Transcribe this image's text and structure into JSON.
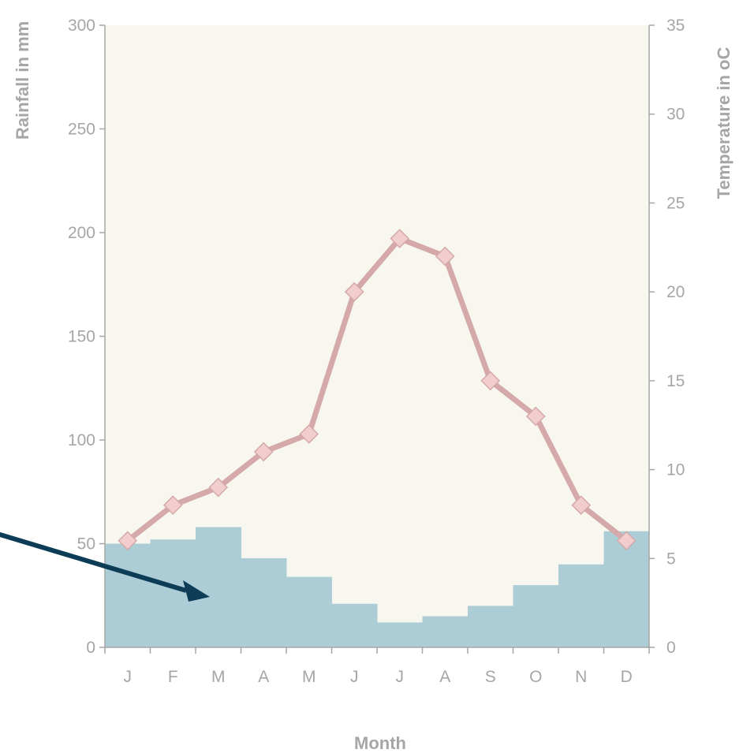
{
  "chart_data": {
    "type": "bar+line",
    "categories": [
      "J",
      "F",
      "M",
      "A",
      "M",
      "J",
      "J",
      "A",
      "S",
      "O",
      "N",
      "D"
    ],
    "series": [
      {
        "type": "bar",
        "axis": "left",
        "values": [
          50,
          52,
          58,
          43,
          34,
          21,
          12,
          15,
          20,
          30,
          40,
          56
        ]
      },
      {
        "type": "line",
        "axis": "right",
        "values": [
          6,
          8,
          9,
          11,
          12,
          20,
          23,
          22,
          15,
          13,
          8,
          6
        ]
      }
    ],
    "xlabel": "Month",
    "ylabel_left": "Rainfall in mm",
    "ylabel_right": "Temperature in oC",
    "ylim_left": [
      0,
      300
    ],
    "ylim_right": [
      0,
      35
    ],
    "yticks_left": [
      0,
      50,
      100,
      150,
      200,
      250,
      300
    ],
    "yticks_right": [
      0,
      5,
      10,
      15,
      20,
      25,
      30,
      35
    ],
    "grid": false,
    "colors": {
      "plot_background": "#f7f7f0",
      "bars": "#adcdd6",
      "line": "#d5a9a9",
      "markers": "#f1cdcd",
      "axis": "#a6a6a6",
      "arrow": "#0d3c57"
    },
    "annotation": {
      "type": "arrow",
      "points_to": "rainfall bars"
    }
  }
}
